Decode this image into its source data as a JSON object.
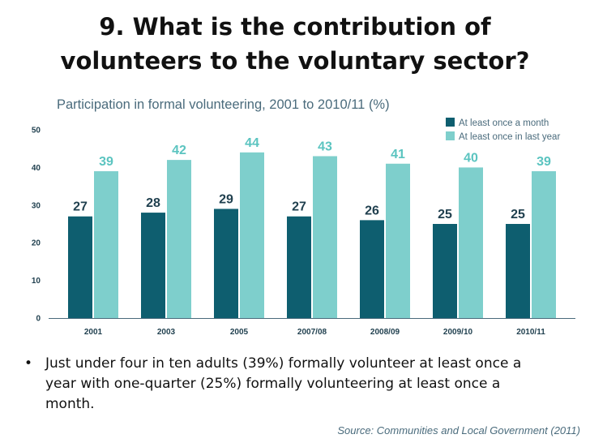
{
  "slide": {
    "title_line1": "9. What is the contribution of",
    "title_line2": "volunteers to the voluntary sector?",
    "bullet": "•",
    "bullet_text": "Just under four in ten adults (39%) formally volunteer at least once a year with one-quarter (25%) formally volunteering at least once a month.",
    "source": "Source: Communities and Local Government (2011)"
  },
  "colors": {
    "series_month": "#0e5e6f",
    "series_year": "#7ecfcc",
    "label_month": "#1f3f4e",
    "label_year": "#5bc4c0",
    "axis": "#4a6b7c"
  },
  "chart_data": {
    "type": "bar",
    "title": "Participation in formal volunteering, 2001 to 2010/11 (%)",
    "categories": [
      "2001",
      "2003",
      "2005",
      "2007/08",
      "2008/09",
      "2009/10",
      "2010/11"
    ],
    "series": [
      {
        "name": "At least once a month",
        "values": [
          27,
          28,
          29,
          27,
          26,
          25,
          25
        ]
      },
      {
        "name": "At least once in last year",
        "values": [
          39,
          42,
          44,
          43,
          41,
          40,
          39
        ]
      }
    ],
    "ylim": [
      0,
      50
    ],
    "yticks": [
      0,
      10,
      20,
      30,
      40,
      50
    ],
    "xlabel": "",
    "ylabel": "",
    "legend": "top-right",
    "grid": false,
    "data_labels": true
  }
}
